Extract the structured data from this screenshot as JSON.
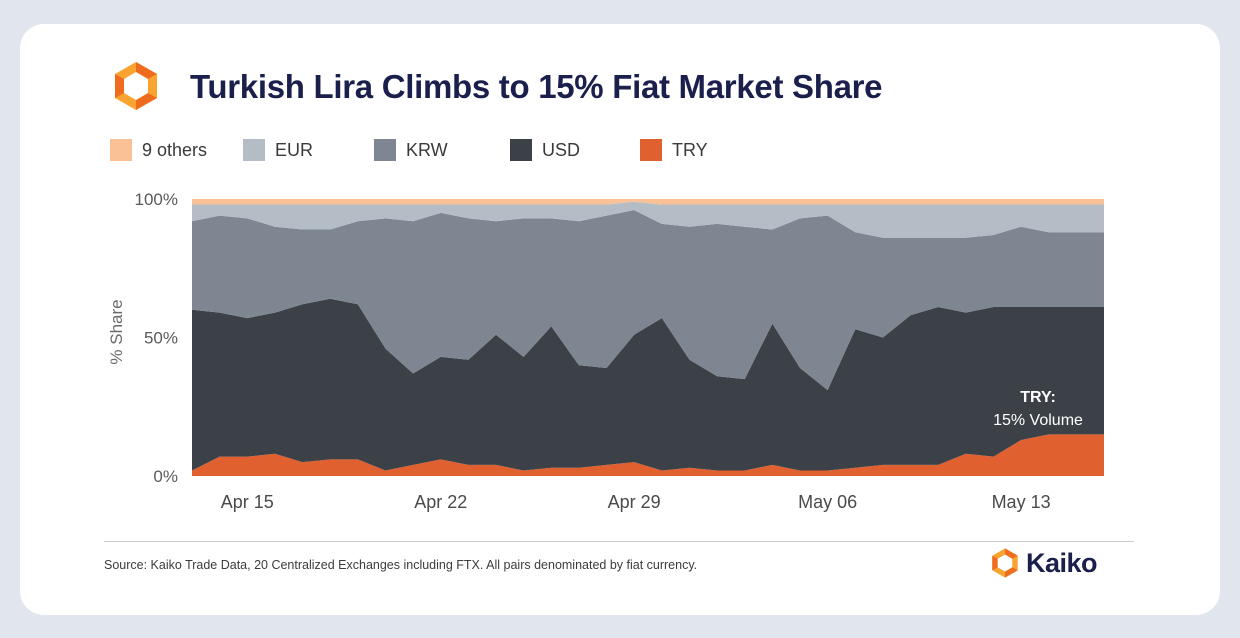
{
  "title": "Turkish Lira Climbs to 15% Fiat Market Share",
  "source": "Source: Kaiko Trade Data, 20 Centralized Exchanges including FTX. All pairs denominated by fiat currency.",
  "brand": {
    "name": "Kaiko",
    "logo_icon": "kaiko-hexagon-logo",
    "logo_color_light": "#f9a431",
    "logo_color_dark": "#ef6c1e"
  },
  "chart_data": {
    "type": "area",
    "stacked": true,
    "normalized": true,
    "title": "Turkish Lira Climbs to 15% Fiat Market Share",
    "ylabel": "% Share",
    "xlabel": "",
    "ylim": [
      0,
      100
    ],
    "y_ticks": [
      "0%",
      "50%",
      "100%"
    ],
    "x": [
      "2022-04-13",
      "2022-04-14",
      "2022-04-15",
      "2022-04-16",
      "2022-04-17",
      "2022-04-18",
      "2022-04-19",
      "2022-04-20",
      "2022-04-21",
      "2022-04-22",
      "2022-04-23",
      "2022-04-24",
      "2022-04-25",
      "2022-04-26",
      "2022-04-27",
      "2022-04-28",
      "2022-04-29",
      "2022-04-30",
      "2022-05-01",
      "2022-05-02",
      "2022-05-03",
      "2022-05-04",
      "2022-05-05",
      "2022-05-06",
      "2022-05-07",
      "2022-05-08",
      "2022-05-09",
      "2022-05-10",
      "2022-05-11",
      "2022-05-12",
      "2022-05-13",
      "2022-05-14",
      "2022-05-15",
      "2022-05-16"
    ],
    "x_tick_labels": [
      {
        "date": "2022-04-15",
        "label": "Apr 15"
      },
      {
        "date": "2022-04-22",
        "label": "Apr 22"
      },
      {
        "date": "2022-04-29",
        "label": "Apr 29"
      },
      {
        "date": "2022-05-06",
        "label": "May 06"
      },
      {
        "date": "2022-05-13",
        "label": "May 13"
      }
    ],
    "legend_position": "top-left",
    "series": [
      {
        "name": "TRY",
        "color": "#e06030",
        "values": [
          2,
          7,
          7,
          8,
          5,
          6,
          6,
          2,
          4,
          6,
          4,
          4,
          2,
          3,
          3,
          4,
          5,
          2,
          3,
          2,
          2,
          4,
          2,
          2,
          3,
          4,
          4,
          4,
          8,
          7,
          13,
          15,
          15,
          15
        ]
      },
      {
        "name": "USD",
        "color": "#3c4147",
        "values": [
          58,
          52,
          50,
          51,
          57,
          58,
          56,
          44,
          33,
          37,
          38,
          47,
          41,
          51,
          37,
          35,
          46,
          55,
          39,
          34,
          33,
          51,
          37,
          29,
          50,
          46,
          54,
          57,
          51,
          54,
          48,
          46,
          46,
          46
        ]
      },
      {
        "name": "KRW",
        "color": "#7d8691",
        "values": [
          32,
          35,
          36,
          31,
          27,
          25,
          30,
          47,
          55,
          52,
          51,
          41,
          50,
          39,
          52,
          55,
          45,
          34,
          48,
          55,
          55,
          34,
          54,
          63,
          35,
          36,
          28,
          25,
          27,
          26,
          29,
          27,
          27,
          27
        ]
      },
      {
        "name": "EUR",
        "color": "#b4bdc6",
        "values": [
          6,
          4,
          5,
          8,
          9,
          9,
          6,
          5,
          6,
          3,
          5,
          6,
          5,
          5,
          6,
          4,
          3,
          7,
          8,
          7,
          8,
          9,
          5,
          4,
          10,
          12,
          12,
          12,
          12,
          11,
          8,
          10,
          10,
          10
        ]
      },
      {
        "name": "9 others",
        "color": "#f9c195",
        "values": [
          2,
          2,
          2,
          2,
          2,
          2,
          2,
          2,
          2,
          2,
          2,
          2,
          2,
          2,
          2,
          2,
          1,
          2,
          2,
          2,
          2,
          2,
          2,
          2,
          2,
          2,
          2,
          2,
          2,
          2,
          2,
          2,
          2,
          2
        ]
      }
    ],
    "annotation": {
      "line1": "TRY:",
      "line2": "15% Volume"
    },
    "grid": false
  }
}
